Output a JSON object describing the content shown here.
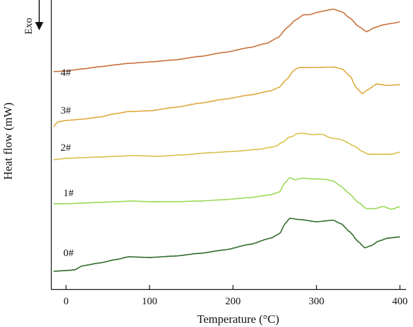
{
  "chart_data": {
    "type": "line",
    "xlabel": "Temperature (°C)",
    "ylabel": "Heat flow (mW)",
    "xlim": [
      -15,
      400
    ],
    "xticks": [
      0,
      100,
      200,
      300,
      400
    ],
    "yticks_shown": false,
    "grid": false,
    "annotation": "Exo",
    "annotation_arrow": "down",
    "series": [
      {
        "name": "4#",
        "color": "#c8703a",
        "points": [
          [
            -15,
            104
          ],
          [
            0,
            103
          ],
          [
            20,
            100
          ],
          [
            40,
            97
          ],
          [
            60,
            94
          ],
          [
            75,
            92
          ],
          [
            100,
            90
          ],
          [
            130,
            87
          ],
          [
            160,
            82
          ],
          [
            190,
            76
          ],
          [
            220,
            69
          ],
          [
            240,
            63
          ],
          [
            255,
            54
          ],
          [
            265,
            41
          ],
          [
            275,
            30
          ],
          [
            285,
            22
          ],
          [
            300,
            18
          ],
          [
            310,
            16
          ],
          [
            320,
            14
          ],
          [
            330,
            18
          ],
          [
            340,
            26
          ],
          [
            350,
            38
          ],
          [
            360,
            46
          ],
          [
            370,
            40
          ],
          [
            380,
            36
          ],
          [
            390,
            34
          ],
          [
            400,
            32
          ]
        ]
      },
      {
        "name": "3#",
        "color": "#e0a83c",
        "points": [
          [
            -15,
            184
          ],
          [
            -10,
            177
          ],
          [
            0,
            175
          ],
          [
            20,
            173
          ],
          [
            40,
            170
          ],
          [
            60,
            165
          ],
          [
            75,
            162
          ],
          [
            100,
            161
          ],
          [
            130,
            156
          ],
          [
            160,
            150
          ],
          [
            190,
            144
          ],
          [
            220,
            138
          ],
          [
            245,
            132
          ],
          [
            255,
            127
          ],
          [
            265,
            115
          ],
          [
            273,
            103
          ],
          [
            280,
            97
          ],
          [
            300,
            97
          ],
          [
            320,
            97
          ],
          [
            330,
            100
          ],
          [
            340,
            110
          ],
          [
            348,
            128
          ],
          [
            355,
            136
          ],
          [
            362,
            130
          ],
          [
            372,
            122
          ],
          [
            385,
            124
          ],
          [
            400,
            123
          ]
        ]
      },
      {
        "name": "2#",
        "color": "#d8c048",
        "points": [
          [
            -15,
            232
          ],
          [
            0,
            230
          ],
          [
            20,
            229
          ],
          [
            40,
            228
          ],
          [
            60,
            227
          ],
          [
            80,
            226
          ],
          [
            110,
            227
          ],
          [
            140,
            225
          ],
          [
            170,
            222
          ],
          [
            200,
            220
          ],
          [
            230,
            217
          ],
          [
            250,
            213
          ],
          [
            260,
            207
          ],
          [
            268,
            199
          ],
          [
            275,
            195
          ],
          [
            290,
            194
          ],
          [
            305,
            196
          ],
          [
            320,
            200
          ],
          [
            335,
            206
          ],
          [
            345,
            212
          ],
          [
            355,
            220
          ],
          [
            362,
            224
          ],
          [
            375,
            224
          ],
          [
            390,
            224
          ],
          [
            400,
            221
          ]
        ]
      },
      {
        "name": "1#",
        "color": "#9bd855",
        "points": [
          [
            -15,
            296
          ],
          [
            0,
            296
          ],
          [
            20,
            295
          ],
          [
            40,
            294
          ],
          [
            60,
            293
          ],
          [
            80,
            292
          ],
          [
            100,
            293
          ],
          [
            130,
            293
          ],
          [
            160,
            292
          ],
          [
            190,
            290
          ],
          [
            220,
            287
          ],
          [
            245,
            283
          ],
          [
            255,
            279
          ],
          [
            262,
            267
          ],
          [
            268,
            259
          ],
          [
            275,
            260
          ],
          [
            290,
            260
          ],
          [
            310,
            260
          ],
          [
            320,
            262
          ],
          [
            330,
            270
          ],
          [
            340,
            282
          ],
          [
            350,
            294
          ],
          [
            360,
            303
          ],
          [
            370,
            303
          ],
          [
            380,
            300
          ],
          [
            390,
            304
          ],
          [
            400,
            300
          ]
        ]
      },
      {
        "name": "0#",
        "color": "#2e6b2a",
        "points": [
          [
            -15,
            394
          ],
          [
            0,
            393
          ],
          [
            10,
            392
          ],
          [
            20,
            386
          ],
          [
            40,
            382
          ],
          [
            60,
            377
          ],
          [
            75,
            373
          ],
          [
            100,
            374
          ],
          [
            130,
            372
          ],
          [
            160,
            368
          ],
          [
            190,
            363
          ],
          [
            220,
            355
          ],
          [
            245,
            346
          ],
          [
            255,
            340
          ],
          [
            262,
            326
          ],
          [
            268,
            318
          ],
          [
            280,
            320
          ],
          [
            300,
            323
          ],
          [
            320,
            320
          ],
          [
            330,
            325
          ],
          [
            340,
            337
          ],
          [
            350,
            351
          ],
          [
            358,
            360
          ],
          [
            365,
            357
          ],
          [
            375,
            350
          ],
          [
            385,
            346
          ],
          [
            400,
            344
          ]
        ]
      }
    ]
  }
}
